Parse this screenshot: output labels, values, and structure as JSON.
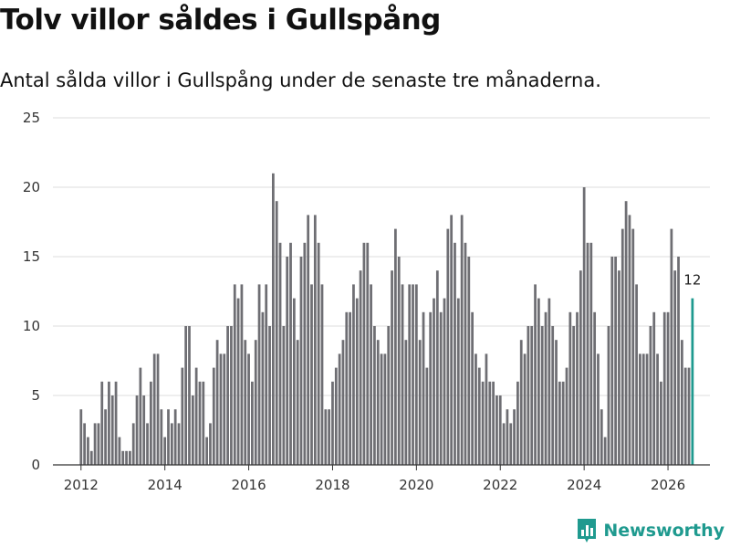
{
  "colors": {
    "bar": "#6e6e73",
    "highlight": "#1f9a8f",
    "grid": "#dddddd",
    "axis": "#333333",
    "brand": "#1f9a8f"
  },
  "brand": {
    "name": "Newsworthy",
    "icon": "newsworthy-logo-icon"
  },
  "chart_data": {
    "type": "bar",
    "title": "Tolv villor såldes i Gullspång",
    "subtitle": "Antal sålda villor i Gullspång under de senaste tre månaderna.",
    "xlabel": "",
    "ylabel": "",
    "ylim": [
      0,
      25
    ],
    "yticks": [
      0,
      5,
      10,
      15,
      20,
      25
    ],
    "xlim": [
      2011.33,
      2027.0
    ],
    "xticks": [
      "2012",
      "2014",
      "2016",
      "2018",
      "2020",
      "2022",
      "2024",
      "2026"
    ],
    "grid": true,
    "legend": "none",
    "start": "2012-01",
    "frequency": "monthly",
    "values": [
      4,
      3,
      2,
      1,
      3,
      3,
      6,
      4,
      6,
      5,
      6,
      2,
      1,
      1,
      1,
      3,
      5,
      7,
      5,
      3,
      6,
      8,
      8,
      4,
      2,
      4,
      3,
      4,
      3,
      7,
      10,
      10,
      5,
      7,
      6,
      6,
      2,
      3,
      7,
      9,
      8,
      8,
      10,
      10,
      13,
      12,
      13,
      9,
      8,
      6,
      9,
      13,
      11,
      13,
      10,
      21,
      19,
      16,
      10,
      15,
      16,
      12,
      9,
      15,
      16,
      18,
      13,
      18,
      16,
      13,
      4,
      4,
      6,
      7,
      8,
      9,
      11,
      11,
      13,
      12,
      14,
      16,
      16,
      13,
      10,
      9,
      8,
      8,
      10,
      14,
      17,
      15,
      13,
      9,
      13,
      13,
      13,
      9,
      11,
      7,
      11,
      12,
      14,
      11,
      12,
      17,
      18,
      16,
      12,
      18,
      16,
      15,
      11,
      8,
      7,
      6,
      8,
      6,
      6,
      5,
      5,
      3,
      4,
      3,
      4,
      6,
      9,
      8,
      10,
      10,
      13,
      12,
      10,
      11,
      12,
      10,
      9,
      6,
      6,
      7,
      11,
      10,
      11,
      14,
      20,
      16,
      16,
      11,
      8,
      4,
      2,
      10,
      15,
      15,
      14,
      17,
      19,
      18,
      17,
      13,
      8,
      8,
      8,
      10,
      11,
      8,
      6,
      11,
      11,
      17,
      14,
      15,
      9,
      7,
      7,
      12
    ],
    "last_label": "12"
  }
}
